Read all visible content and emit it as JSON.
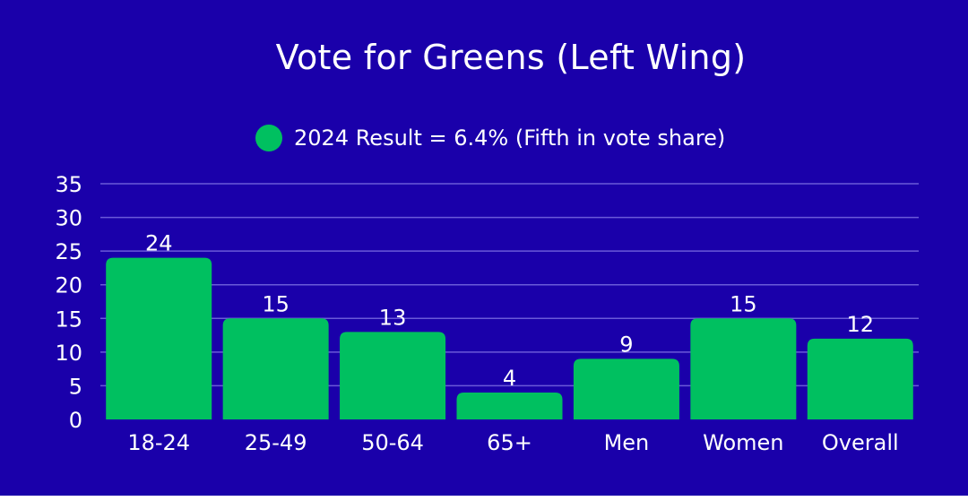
{
  "colors": {
    "background": "#1a00aa",
    "bar": "#00c060",
    "text": "#ffffff",
    "grid": "#6a5ad8"
  },
  "chart_data": {
    "type": "bar",
    "title": "Vote for Greens (Left Wing)",
    "legend": {
      "label": "2024 Result = 6.4% (Fifth in vote share)",
      "placement": "top-center"
    },
    "categories": [
      "18-24",
      "25-49",
      "50-64",
      "65+",
      "Men",
      "Women",
      "Overall"
    ],
    "series": [
      {
        "name": "2024 Result = 6.4% (Fifth in vote share)",
        "values": [
          24,
          15,
          13,
          4,
          9,
          15,
          12
        ]
      }
    ],
    "data_labels": [
      "24",
      "15",
      "13",
      "4",
      "9",
      "15",
      "12"
    ],
    "yticks": [
      0,
      5,
      10,
      15,
      20,
      25,
      30,
      35
    ],
    "ytick_labels": [
      "0",
      "5",
      "10",
      "15",
      "20",
      "25",
      "30",
      "35"
    ],
    "ylim": [
      0,
      35
    ],
    "grid": true,
    "xlabel": "",
    "ylabel": ""
  }
}
